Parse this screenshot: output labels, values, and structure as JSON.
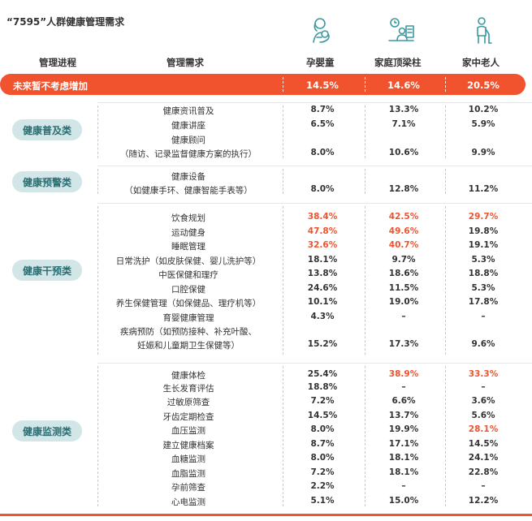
{
  "title": "“7595”人群健康管理需求",
  "colors": {
    "accent": "#f0532e",
    "pill_bg": "#d2e6e7",
    "pill_text": "#2a6e73",
    "icon": "#3a9aa0"
  },
  "headers": {
    "process": "管理进程",
    "need": "管理需求",
    "col1": "孕婴童",
    "col2": "家庭顶梁柱",
    "col3": "家中老人"
  },
  "icons": {
    "col1": "mother-baby-icon",
    "col2": "family-breadwinner-icon",
    "col3": "elderly-person-icon"
  },
  "top_row": {
    "label": "未来暂不考虑增加",
    "v1": "14.5%",
    "v2": "14.6%",
    "v3": "20.5%"
  },
  "groups": [
    {
      "name": "健康普及类",
      "rows": [
        {
          "lines": [
            "健康资讯普及"
          ],
          "v1": "8.7%",
          "v2": "13.3%",
          "v3": "10.2%"
        },
        {
          "lines": [
            "健康讲座"
          ],
          "v1": "6.5%",
          "v2": "7.1%",
          "v3": "5.9%"
        },
        {
          "lines": [
            "健康顾问",
            "（随访、记录监督健康方案的执行）"
          ],
          "v1": "8.0%",
          "v2": "10.6%",
          "v3": "9.9%"
        }
      ]
    },
    {
      "name": "健康预警类",
      "rows": [
        {
          "lines": [
            "健康设备",
            "（如健康手环、健康智能手表等）"
          ],
          "v1": "8.0%",
          "v2": "12.8%",
          "v3": "11.2%"
        }
      ]
    },
    {
      "name": "健康干预类",
      "rows": [
        {
          "lines": [
            "饮食规划"
          ],
          "v1": "38.4%",
          "v2": "42.5%",
          "v3": "29.7%",
          "h1": true,
          "h2": true,
          "h3": true
        },
        {
          "lines": [
            "运动健身"
          ],
          "v1": "47.8%",
          "v2": "49.6%",
          "v3": "19.8%",
          "h1": true,
          "h2": true
        },
        {
          "lines": [
            "睡眠管理"
          ],
          "v1": "32.6%",
          "v2": "40.7%",
          "v3": "19.1%",
          "h1": true,
          "h2": true
        },
        {
          "lines": [
            "日常洗护（如皮肤保健、婴儿洗护等）"
          ],
          "v1": "18.1%",
          "v2": "9.7%",
          "v3": "5.3%"
        },
        {
          "lines": [
            "中医保健和理疗"
          ],
          "v1": "13.8%",
          "v2": "18.6%",
          "v3": "18.8%"
        },
        {
          "lines": [
            "口腔保健"
          ],
          "v1": "24.6%",
          "v2": "11.5%",
          "v3": "5.3%"
        },
        {
          "lines": [
            "养生保健管理（如保健品、理疗机等）"
          ],
          "v1": "10.1%",
          "v2": "19.0%",
          "v3": "17.8%"
        },
        {
          "lines": [
            "育婴健康管理"
          ],
          "v1": "4.3%",
          "v2": "–",
          "v3": "–"
        },
        {
          "lines": [
            "疾病预防（如预防接种、补充叶酸、",
            "妊娠和儿童期卫生保健等）"
          ],
          "v1": "15.2%",
          "v2": "17.3%",
          "v3": "9.6%"
        }
      ]
    },
    {
      "name": "健康监测类",
      "rows": [
        {
          "lines": [
            "健康体检"
          ],
          "v1": "25.4%",
          "v2": "38.9%",
          "v3": "33.3%",
          "h2": true,
          "h3": true
        },
        {
          "lines": [
            "生长发育评估"
          ],
          "v1": "18.8%",
          "v2": "–",
          "v3": "–"
        },
        {
          "lines": [
            "过敏原筛查"
          ],
          "v1": "7.2%",
          "v2": "6.6%",
          "v3": "3.6%"
        },
        {
          "lines": [
            "牙齿定期检查"
          ],
          "v1": "14.5%",
          "v2": "13.7%",
          "v3": "5.6%"
        },
        {
          "lines": [
            "血压监测"
          ],
          "v1": "8.0%",
          "v2": "19.9%",
          "v3": "28.1%",
          "h3": true
        },
        {
          "lines": [
            "建立健康档案"
          ],
          "v1": "8.7%",
          "v2": "17.1%",
          "v3": "14.5%"
        },
        {
          "lines": [
            "血糖监测"
          ],
          "v1": "8.0%",
          "v2": "18.1%",
          "v3": "24.1%"
        },
        {
          "lines": [
            "血脂监测"
          ],
          "v1": "7.2%",
          "v2": "18.1%",
          "v3": "22.8%"
        },
        {
          "lines": [
            "孕前筛查"
          ],
          "v1": "2.2%",
          "v2": "–",
          "v3": "–"
        },
        {
          "lines": [
            "心电监测"
          ],
          "v1": "5.1%",
          "v2": "15.0%",
          "v3": "12.2%"
        }
      ]
    }
  ]
}
